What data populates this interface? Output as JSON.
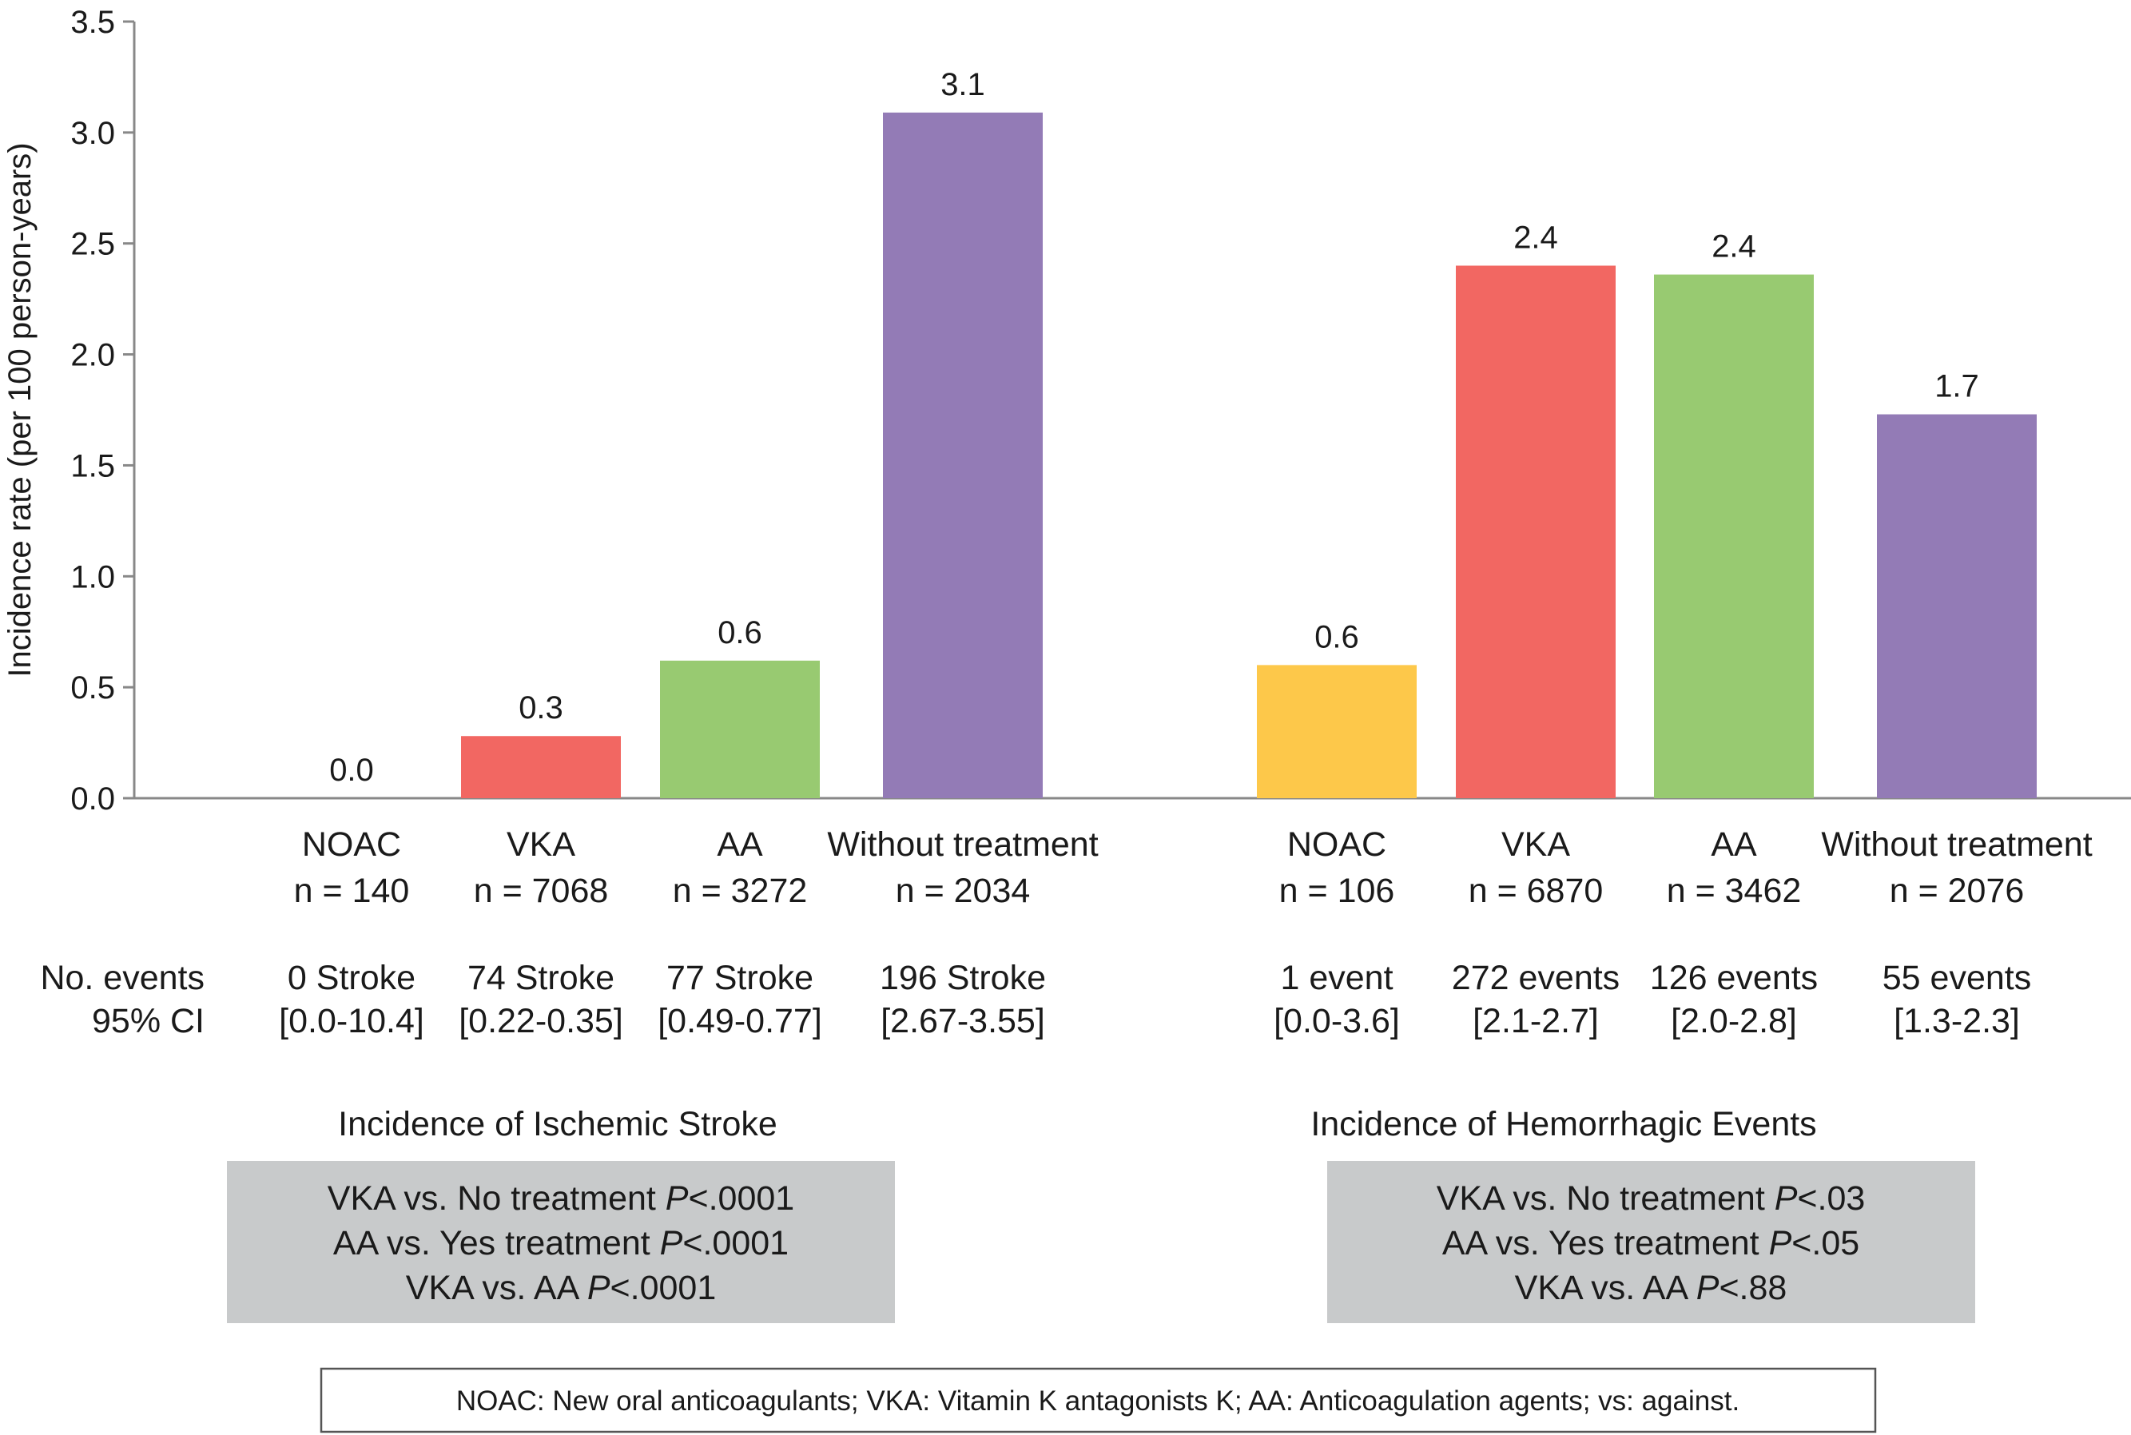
{
  "chart_data": {
    "type": "bar",
    "ylabel": "Incidence rate (per 100 person-years)",
    "ylim": [
      0,
      3.5
    ],
    "yticks": [
      "0.0",
      "0.5",
      "1.0",
      "1.5",
      "2.0",
      "2.5",
      "3.0",
      "3.5"
    ],
    "grid": false,
    "row_labels": {
      "events": "No. events",
      "ci": "95% CI"
    },
    "groups": [
      {
        "title": "Incidence of Ischemic Stroke",
        "bars": [
          {
            "category": "NOAC",
            "n": "n = 140",
            "value": 0.0,
            "label": "0.0",
            "events": "0 Stroke",
            "ci": "[0.0-10.4]",
            "color": "#fdc84a"
          },
          {
            "category": "VKA",
            "n": "n = 7068",
            "value": 0.28,
            "label": "0.3",
            "events": "74 Stroke",
            "ci": "[0.22-0.35]",
            "color": "#f26762"
          },
          {
            "category": "AA",
            "n": "n = 3272",
            "value": 0.62,
            "label": "0.6",
            "events": "77 Stroke",
            "ci": "[0.49-0.77]",
            "color": "#98ca71"
          },
          {
            "category": "Without treatment",
            "n": "n = 2034",
            "value": 3.09,
            "label": "3.1",
            "events": "196 Stroke",
            "ci": "[2.67-3.55]",
            "color": "#937bb6"
          }
        ],
        "pvalues": [
          {
            "text": "VKA vs. No treatment ",
            "p": "P",
            "rest": "<.0001"
          },
          {
            "text": "AA vs. Yes treatment ",
            "p": "P",
            "rest": "<.0001"
          },
          {
            "text": "VKA vs. AA ",
            "p": "P",
            "rest": "<.0001"
          }
        ]
      },
      {
        "title": "Incidence of Hemorrhagic Events",
        "bars": [
          {
            "category": "NOAC",
            "n": "n = 106",
            "value": 0.6,
            "label": "0.6",
            "events": "1 event",
            "ci": "[0.0-3.6]",
            "color": "#fdc84a"
          },
          {
            "category": "VKA",
            "n": "n = 6870",
            "value": 2.4,
            "label": "2.4",
            "events": "272 events",
            "ci": "[2.1-2.7]",
            "color": "#f26762"
          },
          {
            "category": "AA",
            "n": "n = 3462",
            "value": 2.36,
            "label": "2.4",
            "events": "126 events",
            "ci": "[2.0-2.8]",
            "color": "#98ca71"
          },
          {
            "category": "Without treatment",
            "n": "n = 2076",
            "value": 1.73,
            "label": "1.7",
            "events": "55 events",
            "ci": "[1.3-2.3]",
            "color": "#937bb6"
          }
        ],
        "pvalues": [
          {
            "text": "VKA vs. No treatment ",
            "p": "P",
            "rest": "<.03"
          },
          {
            "text": "AA vs. Yes treatment ",
            "p": "P",
            "rest": "<.05"
          },
          {
            "text": "VKA vs. AA ",
            "p": "P",
            "rest": "<.88"
          }
        ]
      }
    ],
    "footnote": "NOAC: New oral anticoagulants; VKA: Vitamin K antagonists K; AA: Anticoagulation agents; vs: against."
  }
}
